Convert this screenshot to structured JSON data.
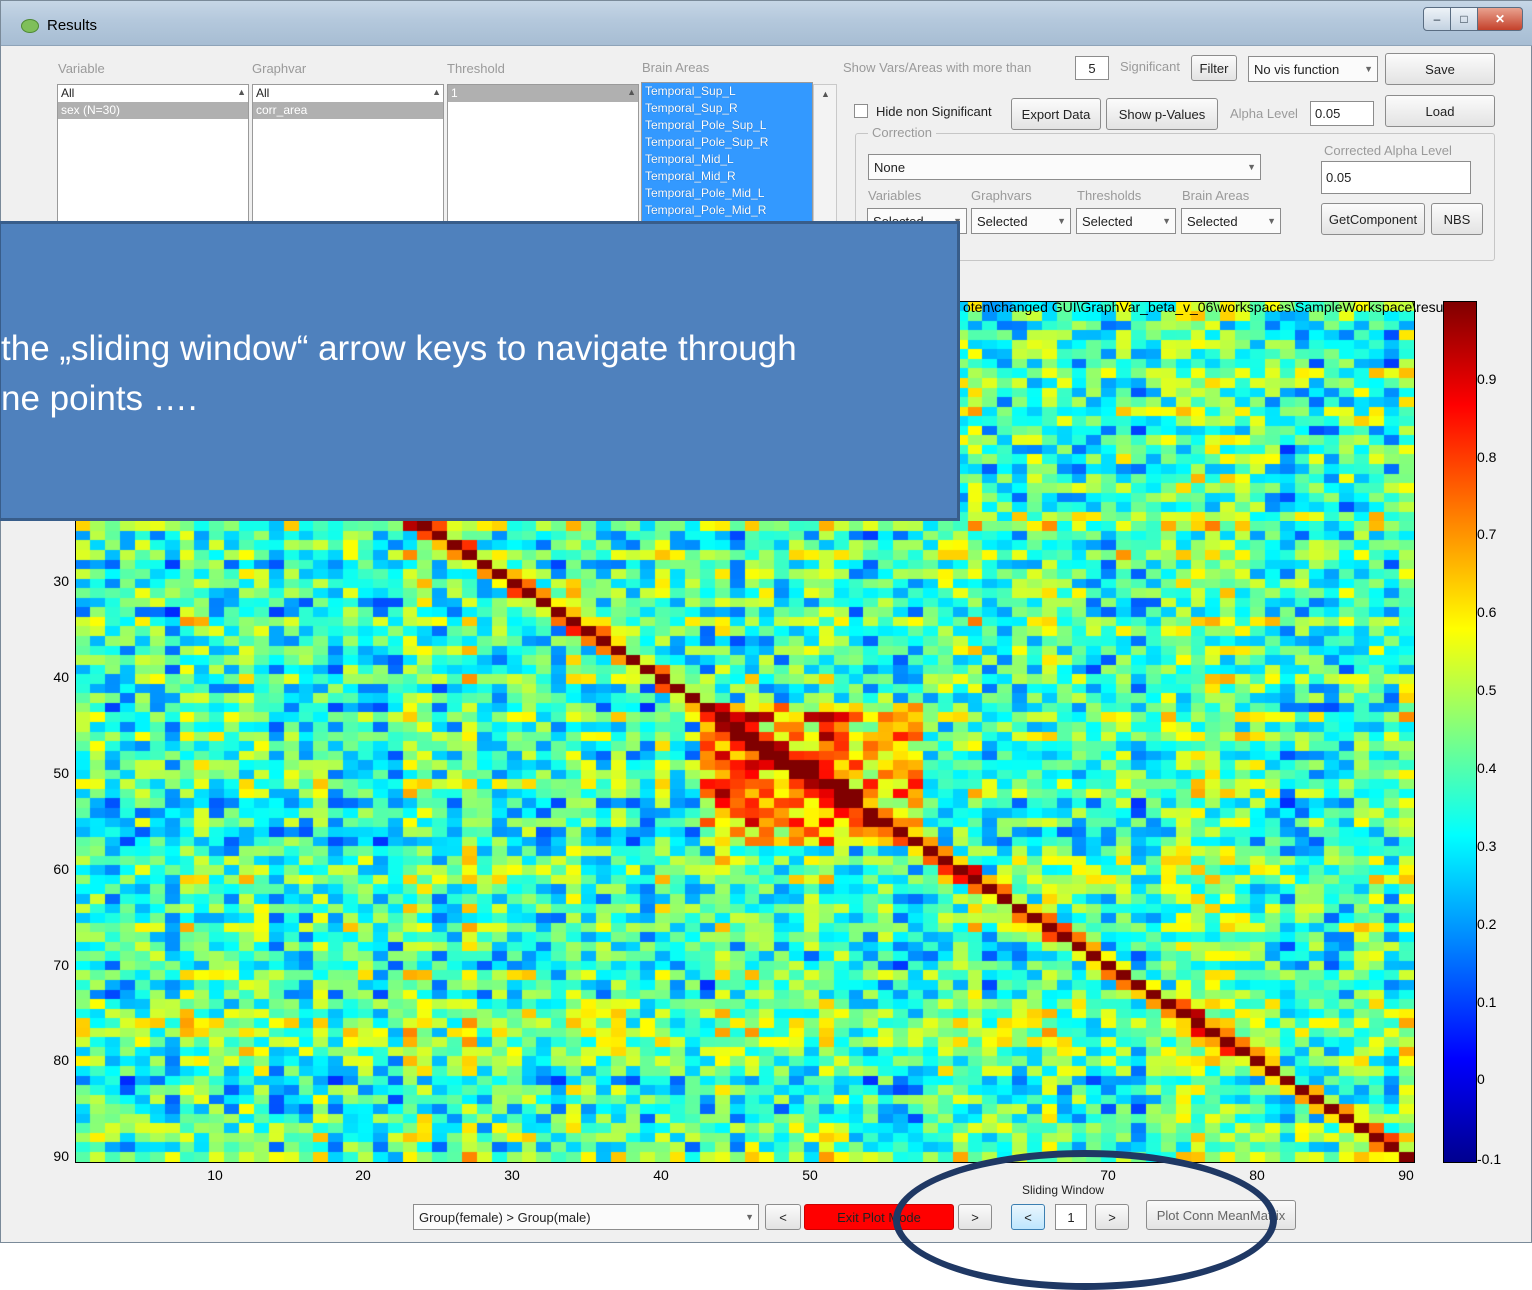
{
  "window": {
    "title": "Results",
    "controls": {
      "minimize": "–",
      "maximize": "□",
      "close": "✕"
    }
  },
  "lists": {
    "variable": {
      "label": "Variable",
      "items": [
        "All",
        "sex (N=30)"
      ],
      "selected": 1
    },
    "graphvar": {
      "label": "Graphvar",
      "items": [
        "All",
        "corr_area"
      ],
      "selected": 1
    },
    "threshold": {
      "label": "Threshold",
      "items": [
        "1"
      ],
      "selected": 0
    },
    "brain_areas": {
      "label": "Brain Areas",
      "items": [
        "Temporal_Sup_L",
        "Temporal_Sup_R",
        "Temporal_Pole_Sup_L",
        "Temporal_Pole_Sup_R",
        "Temporal_Mid_L",
        "Temporal_Mid_R",
        "Temporal_Pole_Mid_L",
        "Temporal_Pole_Mid_R"
      ]
    }
  },
  "controls": {
    "show_vars_label": "Show Vars/Areas with more than",
    "show_vars_value": "5",
    "significant_label": "Significant",
    "filter_button": "Filter",
    "vis_function": "No vis function",
    "save_button": "Save",
    "hide_non_significant": "Hide non Significant",
    "export_data": "Export Data",
    "show_pvalues": "Show p-Values",
    "alpha_label": "Alpha Level",
    "alpha_value": "0.05",
    "load_button": "Load",
    "correction_title": "Correction",
    "correction_value": "None",
    "corrected_alpha_label": "Corrected Alpha Level",
    "corrected_alpha_value": "0.05",
    "variables_label": "Variables",
    "graphvars_label": "Graphvars",
    "thresholds_label": "Thresholds",
    "brain_areas_label": "Brain Areas",
    "variables_dd": "Selected",
    "graphvars_dd": "Selected",
    "thresholds_dd": "Selected",
    "brain_areas_dd": "Selected",
    "get_component": "GetComponent",
    "nbs_button": "NBS"
  },
  "plot": {
    "path": "oten\\changed GUI\\GraphVar_beta_v_06\\workspaces\\SampleWorkspace\\resu",
    "y_ticks": [
      "30",
      "40",
      "50",
      "60",
      "70",
      "80",
      "90"
    ],
    "x_ticks": [
      "10",
      "20",
      "30",
      "40",
      "50",
      "70",
      "80",
      "90"
    ],
    "colorbar_ticks": [
      "0.9",
      "0.8",
      "0.7",
      "0.6",
      "0.5",
      "0.4",
      "0.3",
      "0.2",
      "0.1",
      "0",
      "-0.1"
    ],
    "colors": {
      "low": "#00008f",
      "high": "#800000"
    }
  },
  "bottom": {
    "group_compare": "Group(female) > Group(male)",
    "prev": "<",
    "exit_plot_mode": "Exit Plot Mode",
    "next": ">",
    "sliding_window_label": "Sliding Window",
    "sw_prev": "<",
    "sw_value": "1",
    "sw_next": ">",
    "plot_conn_mean": "Plot Conn MeanMatrix"
  },
  "overlay": {
    "line1": "the „sliding window“ arrow keys to navigate through",
    "line2": "ne points …."
  }
}
